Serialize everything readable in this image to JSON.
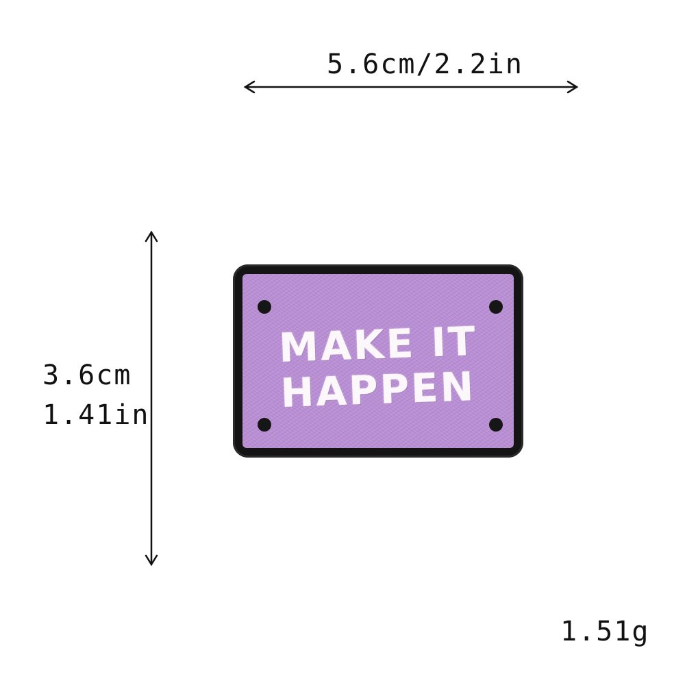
{
  "dimensions": {
    "width_text": "5.6cm/2.2in",
    "height_cm_text": "3.6cm",
    "height_in_text": "1.41in"
  },
  "weight_text": "1.51g",
  "patch": {
    "line_1": "MAKE IT",
    "line_2": "HAPPEN",
    "colors": {
      "border": "#141414",
      "fill": "#b98fd3",
      "text": "#fbf7fb"
    }
  }
}
